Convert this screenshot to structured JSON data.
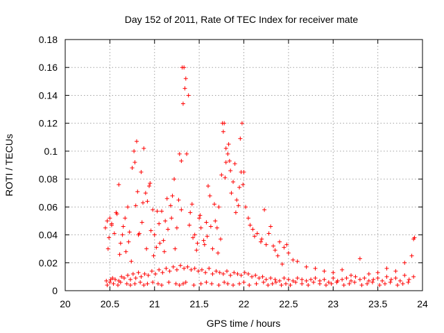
{
  "chart_data": {
    "type": "scatter",
    "title": "Day 152 of 2011, Rate Of TEC Index for receiver mate",
    "xlabel": "GPS time / hours",
    "ylabel": "ROTI / TECUs",
    "xlim": [
      20,
      24
    ],
    "ylim": [
      0,
      0.18
    ],
    "xticks": [
      "20",
      "20.5",
      "21",
      "21.5",
      "22",
      "22.5",
      "23",
      "23.5",
      "24"
    ],
    "yticks": [
      "0",
      "0.02",
      "0.04",
      "0.06",
      "0.08",
      "0.1",
      "0.12",
      "0.14",
      "0.16",
      "0.18"
    ],
    "grid": true,
    "marker": "plus",
    "series": [
      {
        "name": "ROTI",
        "color": "#ff0000",
        "x": [
          20.45,
          20.47,
          20.49,
          20.5,
          20.52,
          20.55,
          20.58,
          20.6,
          20.62,
          20.65,
          20.68,
          20.7,
          20.72,
          20.75,
          20.78,
          20.8,
          20.82,
          20.85,
          20.88,
          20.9,
          20.92,
          20.95,
          20.98,
          21.0,
          21.02,
          21.05,
          21.08,
          21.1,
          21.12,
          21.15,
          21.18,
          21.2,
          21.22,
          21.25,
          21.28,
          21.3,
          21.32,
          21.35,
          21.38,
          21.4,
          21.42,
          21.45,
          21.48,
          21.5,
          21.52,
          21.55,
          21.58,
          21.6,
          21.62,
          21.65,
          21.68,
          21.7,
          21.72,
          21.75,
          21.78,
          21.8,
          21.82,
          21.85,
          21.88,
          21.9,
          21.92,
          21.95,
          21.98,
          22.0,
          22.05,
          22.1,
          22.15,
          22.2,
          22.25,
          22.3,
          22.35,
          22.4,
          22.45,
          22.5,
          22.55,
          22.6,
          22.7,
          22.8,
          22.9,
          23.0,
          23.1,
          23.2,
          23.3,
          23.4,
          23.5,
          23.6,
          23.7,
          23.8,
          23.9,
          20.46,
          20.5,
          20.53,
          20.56,
          20.6,
          20.63,
          20.66,
          20.7,
          20.73,
          20.76,
          20.79,
          20.82,
          20.85,
          20.89,
          20.93,
          20.97,
          21.01,
          21.05,
          21.09,
          21.13,
          21.17,
          21.21,
          21.25,
          21.29,
          21.33,
          21.37,
          21.41,
          21.45,
          21.49,
          21.53,
          21.57,
          21.61,
          21.65,
          21.69,
          21.73,
          21.77,
          21.81,
          21.85,
          21.89,
          21.93,
          21.97,
          22.01,
          22.05,
          22.09,
          22.13,
          22.17,
          22.21,
          22.25,
          22.3,
          22.35,
          22.4,
          22.45,
          22.5,
          22.55,
          22.6,
          22.65,
          22.7,
          22.75,
          22.8,
          22.85,
          22.9,
          22.95,
          23.0,
          23.05,
          23.1,
          23.15,
          23.2,
          23.25,
          23.3,
          23.35,
          23.4,
          23.45,
          23.5,
          23.55,
          23.6,
          23.65,
          23.7,
          23.75,
          23.8,
          23.85,
          23.9,
          20.48,
          20.52,
          20.57,
          20.61,
          20.64,
          20.67,
          20.71,
          20.74,
          20.77,
          20.79,
          20.81,
          20.83,
          20.86,
          20.87,
          20.91,
          20.94,
          20.96,
          20.99,
          21.03,
          21.06,
          21.11,
          21.14,
          21.19,
          21.23,
          21.27,
          21.3,
          21.31,
          21.33,
          21.34,
          21.36,
          21.39,
          21.43,
          21.47,
          21.51,
          21.56,
          21.59,
          21.63,
          21.67,
          21.71,
          21.74,
          21.76,
          21.77,
          21.79,
          21.8,
          21.83,
          21.84,
          21.86,
          21.91,
          21.94,
          21.96,
          21.97,
          21.99,
          22.02,
          22.07,
          22.12,
          22.19,
          22.23,
          22.28,
          22.33,
          22.38,
          22.43,
          22.48,
          20.47,
          20.51,
          20.54,
          20.59,
          20.62,
          20.69,
          20.73,
          20.78,
          20.84,
          20.88,
          20.92,
          20.98,
          21.04,
          21.08,
          21.16,
          21.24,
          21.28,
          21.32,
          21.35,
          21.44,
          21.52,
          21.58,
          21.64,
          21.72,
          21.78,
          21.82,
          21.88,
          21.95,
          22.0,
          22.06,
          22.14,
          22.22,
          22.27,
          22.32,
          22.36,
          22.42,
          22.47,
          22.52,
          22.58,
          22.65,
          22.72,
          22.78,
          22.85,
          22.92,
          22.98,
          23.04,
          23.12,
          23.18,
          23.24,
          23.32,
          23.38,
          23.44,
          23.52,
          23.58,
          23.64,
          23.72,
          23.78,
          23.84,
          23.88,
          23.91
        ],
        "y": [
          0.045,
          0.05,
          0.038,
          0.052,
          0.048,
          0.041,
          0.055,
          0.076,
          0.034,
          0.046,
          0.028,
          0.06,
          0.042,
          0.088,
          0.092,
          0.107,
          0.04,
          0.085,
          0.102,
          0.07,
          0.064,
          0.077,
          0.058,
          0.04,
          0.031,
          0.048,
          0.057,
          0.036,
          0.05,
          0.044,
          0.061,
          0.068,
          0.08,
          0.045,
          0.098,
          0.093,
          0.134,
          0.152,
          0.14,
          0.056,
          0.062,
          0.04,
          0.034,
          0.052,
          0.045,
          0.036,
          0.049,
          0.075,
          0.068,
          0.03,
          0.05,
          0.045,
          0.06,
          0.083,
          0.12,
          0.092,
          0.098,
          0.086,
          0.078,
          0.091,
          0.065,
          0.074,
          0.12,
          0.085,
          0.052,
          0.044,
          0.041,
          0.037,
          0.033,
          0.046,
          0.029,
          0.035,
          0.031,
          0.027,
          0.022,
          0.021,
          0.017,
          0.016,
          0.014,
          0.013,
          0.015,
          0.011,
          0.023,
          0.012,
          0.013,
          0.016,
          0.014,
          0.02,
          0.037,
          0.007,
          0.006,
          0.009,
          0.008,
          0.007,
          0.01,
          0.009,
          0.011,
          0.008,
          0.012,
          0.009,
          0.013,
          0.01,
          0.012,
          0.011,
          0.014,
          0.012,
          0.015,
          0.013,
          0.016,
          0.014,
          0.017,
          0.015,
          0.018,
          0.016,
          0.017,
          0.015,
          0.016,
          0.014,
          0.015,
          0.013,
          0.016,
          0.012,
          0.014,
          0.013,
          0.012,
          0.014,
          0.011,
          0.013,
          0.012,
          0.011,
          0.013,
          0.012,
          0.01,
          0.011,
          0.009,
          0.01,
          0.008,
          0.009,
          0.008,
          0.007,
          0.009,
          0.008,
          0.007,
          0.009,
          0.008,
          0.007,
          0.008,
          0.009,
          0.007,
          0.008,
          0.006,
          0.009,
          0.007,
          0.008,
          0.009,
          0.007,
          0.01,
          0.008,
          0.009,
          0.007,
          0.008,
          0.009,
          0.007,
          0.01,
          0.008,
          0.009,
          0.007,
          0.011,
          0.008,
          0.01,
          0.03,
          0.047,
          0.056,
          0.026,
          0.04,
          0.052,
          0.035,
          0.021,
          0.1,
          0.061,
          0.071,
          0.041,
          0.049,
          0.063,
          0.03,
          0.075,
          0.043,
          0.025,
          0.057,
          0.034,
          0.028,
          0.066,
          0.052,
          0.03,
          0.065,
          0.058,
          0.16,
          0.16,
          0.145,
          0.098,
          0.047,
          0.038,
          0.029,
          0.054,
          0.033,
          0.039,
          0.046,
          0.062,
          0.027,
          0.037,
          0.12,
          0.114,
          0.081,
          0.102,
          0.105,
          0.093,
          0.07,
          0.056,
          0.061,
          0.109,
          0.085,
          0.076,
          0.06,
          0.047,
          0.039,
          0.035,
          0.058,
          0.041,
          0.032,
          0.025,
          0.019,
          0.033,
          0.004,
          0.008,
          0.005,
          0.004,
          0.006,
          0.005,
          0.004,
          0.005,
          0.006,
          0.004,
          0.005,
          0.006,
          0.005,
          0.004,
          0.006,
          0.005,
          0.004,
          0.005,
          0.006,
          0.004,
          0.005,
          0.006,
          0.005,
          0.004,
          0.006,
          0.005,
          0.004,
          0.005,
          0.006,
          0.004,
          0.005,
          0.006,
          0.004,
          0.005,
          0.006,
          0.004,
          0.005,
          0.004,
          0.006,
          0.005,
          0.004,
          0.006,
          0.005,
          0.004,
          0.005,
          0.006,
          0.004,
          0.005,
          0.006,
          0.004,
          0.005,
          0.006,
          0.004,
          0.005,
          0.006,
          0.004,
          0.005,
          0.006,
          0.025,
          0.038
        ]
      }
    ]
  }
}
